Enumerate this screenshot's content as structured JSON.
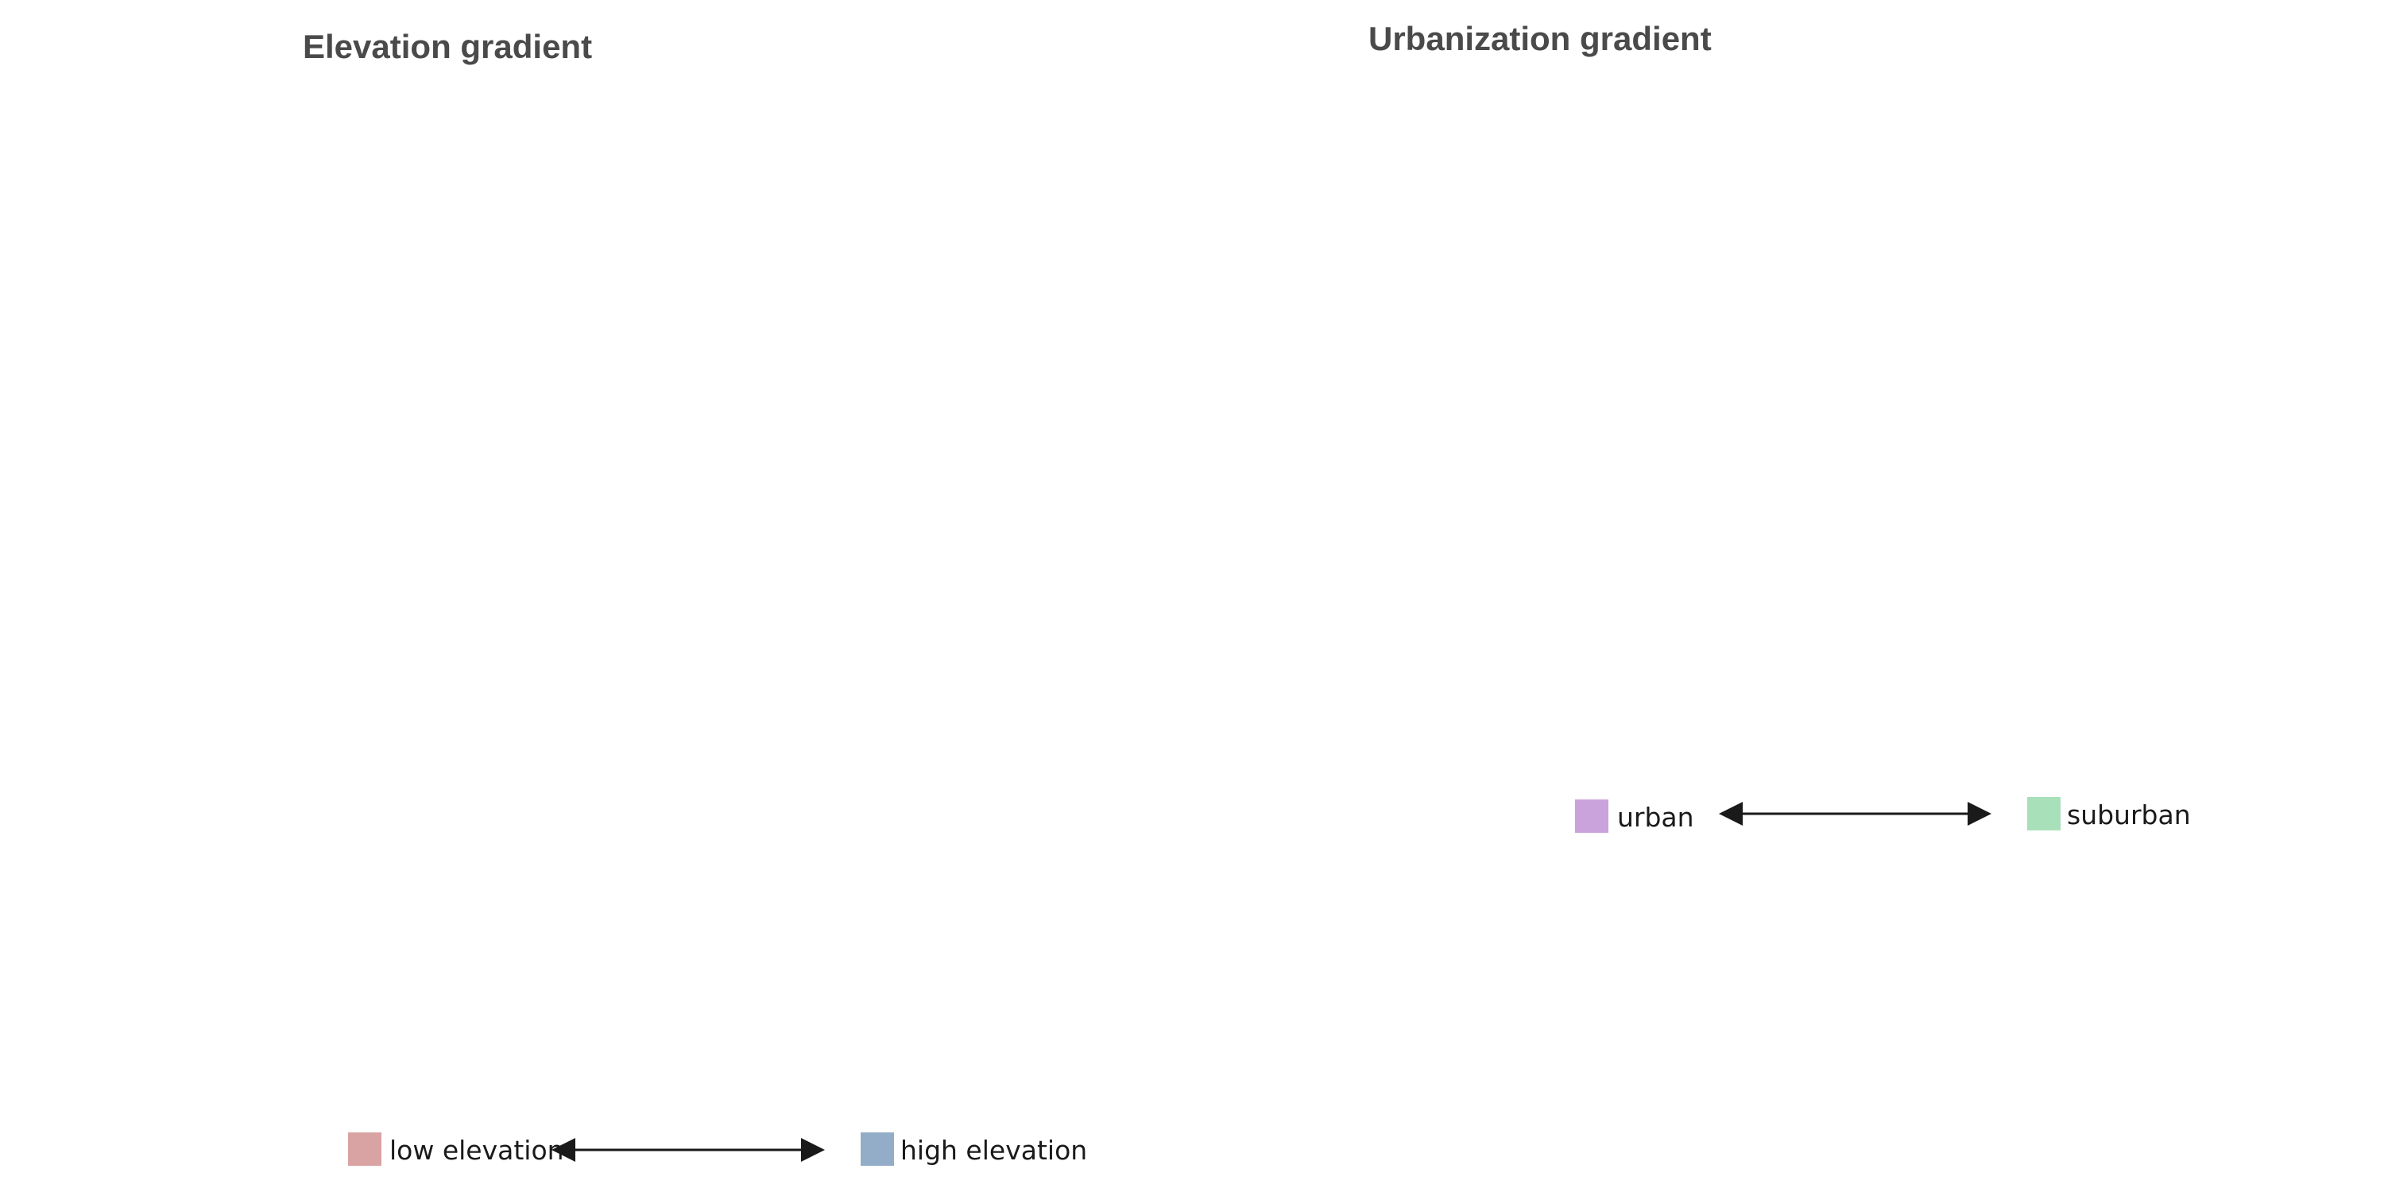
{
  "panels": {
    "elevation": {
      "title": "Elevation gradient",
      "legend": {
        "low_label": "low elevation",
        "low_color": "#d9a3a3",
        "high_label": "high elevation",
        "high_color": "#93adc8"
      }
    },
    "urbanization": {
      "title": "Urbanization gradient",
      "legend": {
        "urban_label": "urban",
        "urban_color": "#cba3dc",
        "suburban_label": "suburban",
        "suburban_color": "#a8e0b9"
      }
    }
  },
  "icons": {
    "gradient_arrow": "double-headed-arrow-icon"
  }
}
